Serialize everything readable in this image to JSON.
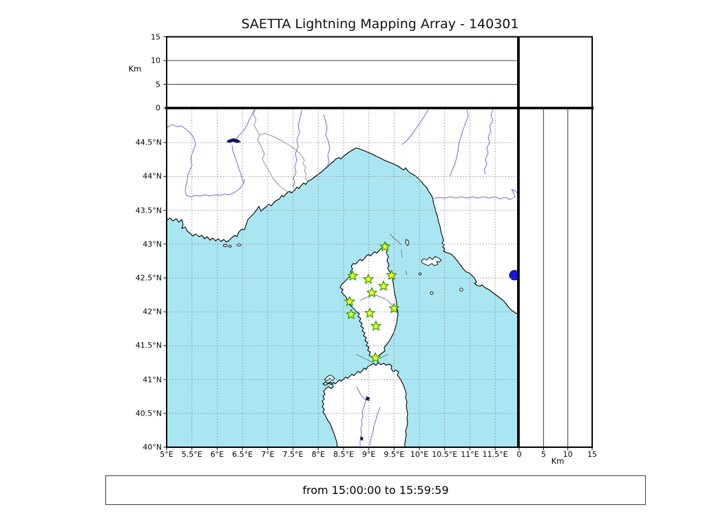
{
  "title": "SAETTA Lightning Mapping Array - 140301",
  "footer": {
    "text": "from 15:00:00 to 15:59:59"
  },
  "top_panel": {
    "axis_label": "Km",
    "ticks": [
      0,
      5,
      10,
      15
    ]
  },
  "right_panel": {
    "axis_label": "Km",
    "ticks": [
      0,
      5,
      10,
      15
    ]
  },
  "map_axes": {
    "lon_ticks": [
      {
        "value": 5,
        "label": "5°E"
      },
      {
        "value": 5.5,
        "label": "5.5°E"
      },
      {
        "value": 6,
        "label": "6°E"
      },
      {
        "value": 6.5,
        "label": "6.5°E"
      },
      {
        "value": 7,
        "label": "7°E"
      },
      {
        "value": 7.5,
        "label": "7.5°E"
      },
      {
        "value": 8,
        "label": "8°E"
      },
      {
        "value": 8.5,
        "label": "8.5°E"
      },
      {
        "value": 9,
        "label": "9°E"
      },
      {
        "value": 9.5,
        "label": "9.5°E"
      },
      {
        "value": 10,
        "label": "10°E"
      },
      {
        "value": 10.5,
        "label": "10.5°E"
      },
      {
        "value": 11,
        "label": "11°E"
      },
      {
        "value": 11.5,
        "label": "11.5°E"
      }
    ],
    "lat_ticks": [
      {
        "value": 40,
        "label": "40°N"
      },
      {
        "value": 40.5,
        "label": "40.5°N"
      },
      {
        "value": 41,
        "label": "41°N"
      },
      {
        "value": 41.5,
        "label": "41.5°N"
      },
      {
        "value": 42,
        "label": "42°N"
      },
      {
        "value": 42.5,
        "label": "42.5°N"
      },
      {
        "value": 43,
        "label": "43°N"
      },
      {
        "value": 43.5,
        "label": "43.5°N"
      },
      {
        "value": 44,
        "label": "44°N"
      },
      {
        "value": 44.5,
        "label": "44.5°N"
      }
    ]
  },
  "chart_data": {
    "type": "scatter",
    "title": "SAETTA Lightning Mapping Array - 140301",
    "time_range": "from 15:00:00 to 15:59:59",
    "map_extent": {
      "lon_range": [
        5,
        11.95
      ],
      "lat_range": [
        40,
        45
      ]
    },
    "altitude_km_range": [
      0,
      15
    ],
    "altitude_gridlines_km": [
      5,
      10
    ],
    "station_marker": "star",
    "stations": [
      {
        "lon": 9.32,
        "lat": 42.96
      },
      {
        "lon": 8.68,
        "lat": 42.53
      },
      {
        "lon": 8.99,
        "lat": 42.48
      },
      {
        "lon": 9.45,
        "lat": 42.54
      },
      {
        "lon": 9.29,
        "lat": 42.38
      },
      {
        "lon": 9.06,
        "lat": 42.28
      },
      {
        "lon": 8.62,
        "lat": 42.15
      },
      {
        "lon": 9.5,
        "lat": 42.05
      },
      {
        "lon": 8.65,
        "lat": 41.96
      },
      {
        "lon": 9.02,
        "lat": 41.98
      },
      {
        "lon": 9.14,
        "lat": 41.79
      },
      {
        "lon": 9.13,
        "lat": 41.32
      }
    ],
    "lightning_sources": []
  },
  "colors": {
    "sea": "#aae6f2",
    "land": "#ffffff",
    "coast": "#000000",
    "river": "#6b6bdb",
    "border": "#8f8f8f",
    "lake": "#1616d6",
    "lake_dark": "#10105a",
    "grid": "#858585",
    "star_fill": "#ffff33",
    "star_edge": "#2fa000"
  }
}
